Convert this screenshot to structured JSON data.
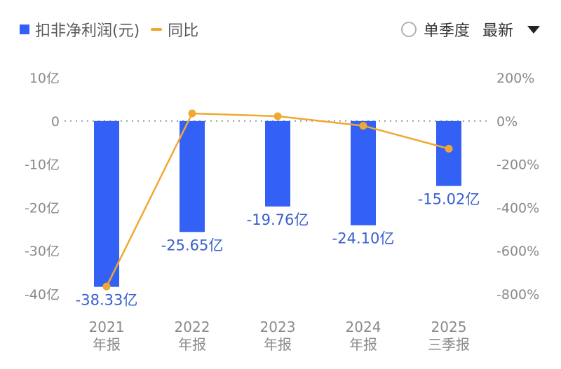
{
  "legend": {
    "bar_label": "扣非净利润(元)",
    "line_label": "同比"
  },
  "controls": {
    "quarter_label": "单季度",
    "latest_label": "最新"
  },
  "colors": {
    "bar": "#3461f5",
    "line": "#f0a830",
    "value_label": "#3a5fcc",
    "axis_text": "#8a8a8a",
    "zero_line": "#999999"
  },
  "chart_data": {
    "type": "bar",
    "title": "",
    "categories": [
      {
        "year": "2021",
        "period": "年报"
      },
      {
        "year": "2022",
        "period": "年报"
      },
      {
        "year": "2023",
        "period": "年报"
      },
      {
        "year": "2024",
        "period": "年报"
      },
      {
        "year": "2025",
        "period": "三季报"
      }
    ],
    "series": [
      {
        "name": "扣非净利润(元)",
        "type": "bar",
        "axis": "left",
        "values": [
          -38.33,
          -25.65,
          -19.76,
          -24.1,
          -15.02
        ],
        "labels": [
          "-38.33亿",
          "-25.65亿",
          "-19.76亿",
          "-24.10亿",
          "-15.02亿"
        ]
      },
      {
        "name": "同比",
        "type": "line",
        "axis": "right",
        "values": [
          -765,
          35,
          22,
          -22,
          -128
        ]
      }
    ],
    "left_axis": {
      "ylim": [
        -40,
        10
      ],
      "ticks": [
        10,
        0,
        -10,
        -20,
        -30,
        -40
      ],
      "tick_labels": [
        "10亿",
        "0",
        "-10亿",
        "-20亿",
        "-30亿",
        "-40亿"
      ]
    },
    "right_axis": {
      "ylim": [
        -800,
        200
      ],
      "ticks": [
        200,
        0,
        -200,
        -400,
        -600,
        -800
      ],
      "tick_labels": [
        "200%",
        "0%",
        "-200%",
        "-400%",
        "-600%",
        "-800%"
      ]
    },
    "grid": false,
    "zero_line": "dotted"
  }
}
